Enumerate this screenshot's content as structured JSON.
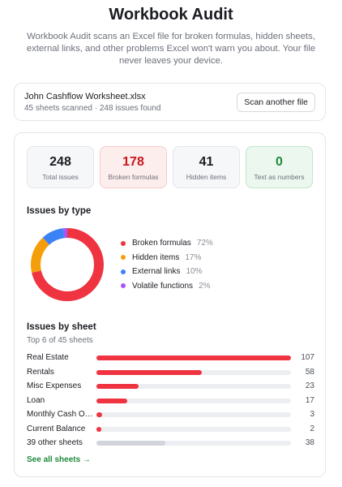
{
  "header": {
    "title": "Workbook Audit",
    "description": "Workbook Audit scans an Excel file for broken formulas, hidden sheets, external links, and other problems Excel won't warn you about. Your file never leaves your device."
  },
  "file": {
    "name": "John Cashflow Worksheet.xlsx",
    "summary": "45 sheets scanned · 248 issues found",
    "button": "Scan another file"
  },
  "stats": [
    {
      "value": 248,
      "label": "Total issues"
    },
    {
      "value": 178,
      "label": "Broken formulas"
    },
    {
      "value": 41,
      "label": "Hidden items"
    },
    {
      "value": 0,
      "label": "Text as numbers"
    }
  ],
  "issues_by_type": {
    "type": "pie",
    "title": "Issues by type",
    "categories": [
      "Broken formulas",
      "Hidden items",
      "External links",
      "Volatile functions"
    ],
    "values": [
      72,
      17,
      10,
      2
    ],
    "value_labels": [
      "72%",
      "17%",
      "10%",
      "2%"
    ],
    "colors": [
      "#ef3340",
      "#f59e0b",
      "#3b82f6",
      "#a855f7"
    ]
  },
  "issues_by_sheet": {
    "type": "bar",
    "title": "Issues by sheet",
    "subtitle": "Top 6 of 45 sheets",
    "categories": [
      "Real Estate",
      "Rentals",
      "Misc Expenses",
      "Loan",
      "Monthly Cash Out...",
      "Current Balance",
      "39 other sheets"
    ],
    "values": [
      107,
      58,
      23,
      17,
      3,
      2,
      38
    ],
    "colors": [
      "#ef3340",
      "#ef3340",
      "#ef3340",
      "#ef3340",
      "#ef3340",
      "#ef3340",
      "#d1d5db"
    ],
    "xlim": [
      0,
      107
    ]
  },
  "link": "See all sheets →"
}
